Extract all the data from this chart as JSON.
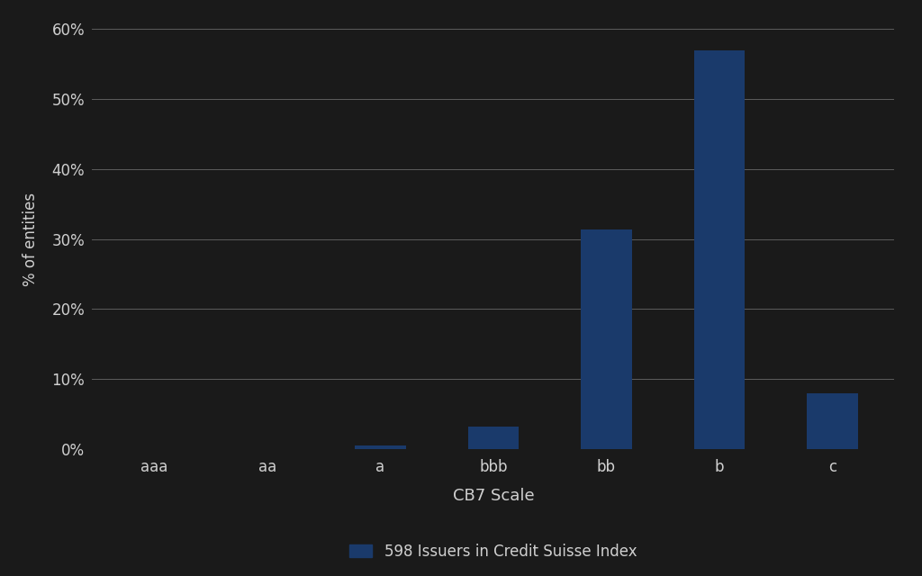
{
  "categories": [
    "aaa",
    "aa",
    "a",
    "bbb",
    "bb",
    "b",
    "c"
  ],
  "values": [
    0.0,
    0.003,
    0.5,
    3.2,
    31.3,
    56.9,
    8.0
  ],
  "bar_color": "#1a3a6b",
  "background_color": "#1a1a1a",
  "text_color": "#d0d0d0",
  "xlabel": "CB7 Scale",
  "ylabel": "% of entities",
  "legend_label": "598 Issuers in Credit Suisse Index",
  "ylim": [
    0,
    60
  ],
  "yticks": [
    0,
    10,
    20,
    30,
    40,
    50,
    60
  ],
  "ytick_labels": [
    "0%",
    "10%",
    "20%",
    "30%",
    "40%",
    "50%",
    "60%"
  ],
  "xlabel_fontsize": 13,
  "ylabel_fontsize": 12,
  "tick_fontsize": 12,
  "legend_fontsize": 12,
  "grid_color": "#888888",
  "bar_width": 0.45
}
